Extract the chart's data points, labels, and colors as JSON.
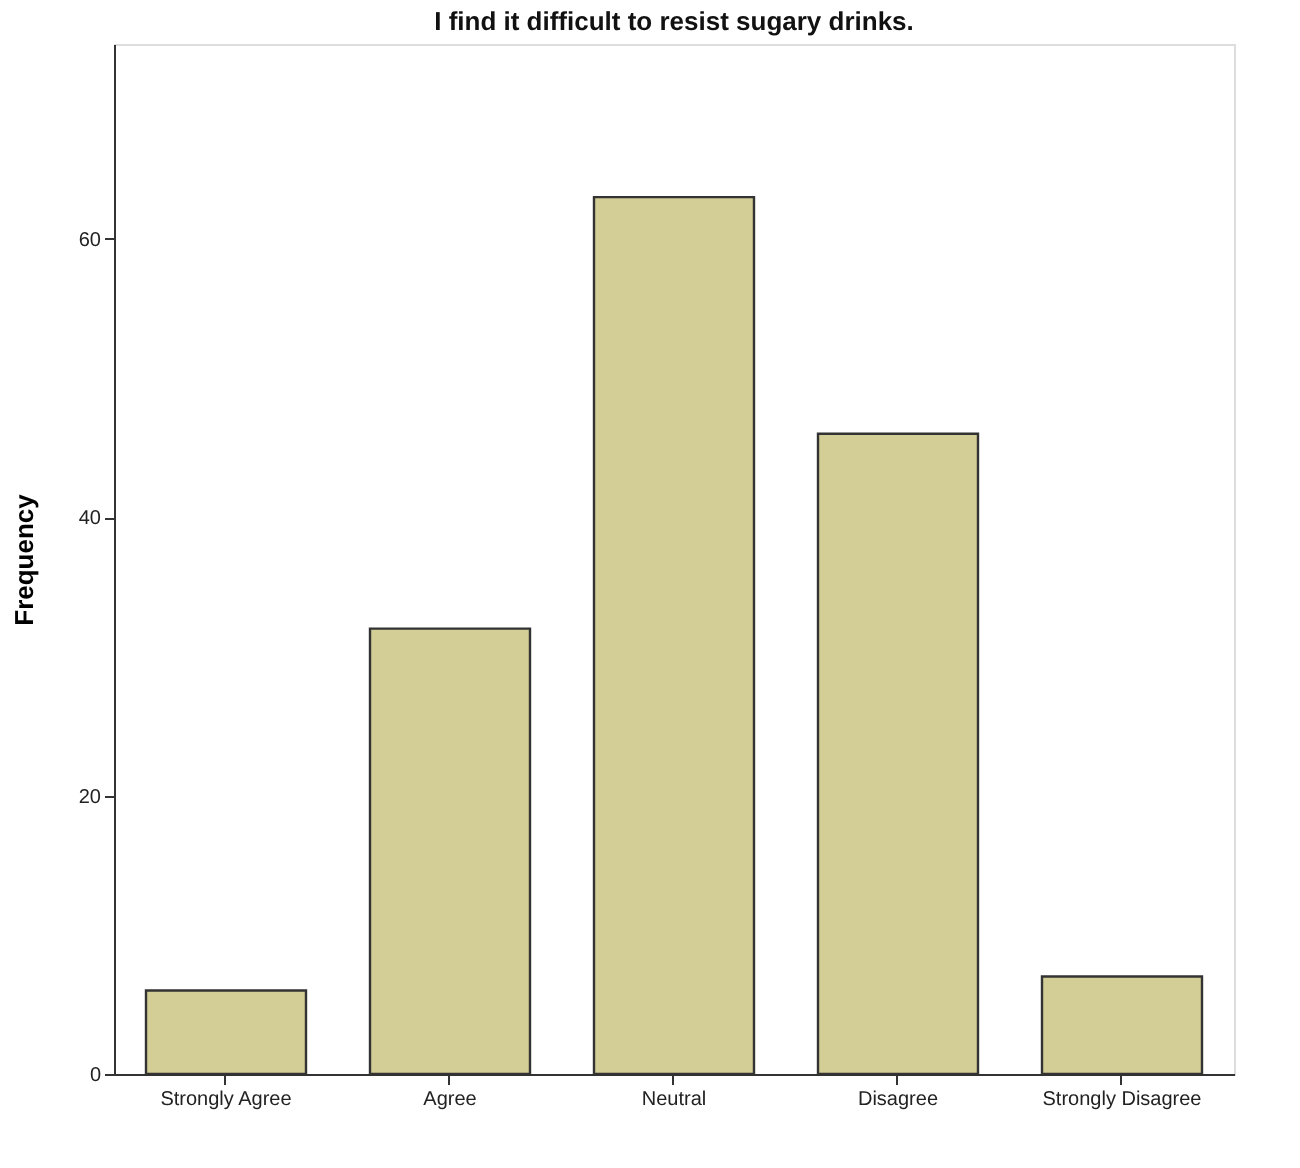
{
  "chart_data": {
    "type": "bar",
    "title": "I find it difficult to resist sugary drinks.",
    "ylabel": "Frequency",
    "categories": [
      "Strongly Agree",
      "Agree",
      "Neutral",
      "Disagree",
      "Strongly Disagree"
    ],
    "values": [
      6,
      32,
      63,
      46,
      7
    ],
    "color": "#d3cd96",
    "ylim": [
      0,
      74
    ],
    "yticks": [
      0,
      20,
      40,
      60
    ],
    "grid": false
  }
}
